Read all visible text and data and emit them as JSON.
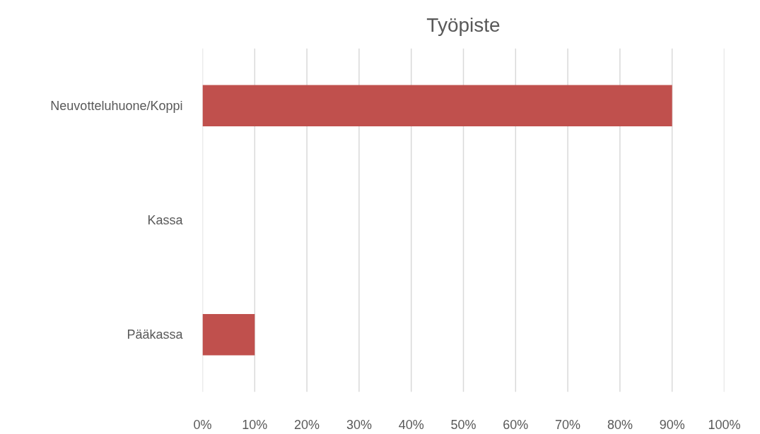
{
  "chart_data": {
    "type": "bar",
    "orientation": "horizontal",
    "title": "Työpiste",
    "categories": [
      "Neuvotteluhuone/Koppi",
      "Kassa",
      "Pääkassa"
    ],
    "values": [
      90,
      0,
      10
    ],
    "color": "#c0504d",
    "xlim": [
      0,
      100
    ],
    "xticks": [
      {
        "value": 0,
        "label": "0%"
      },
      {
        "value": 10,
        "label": "10%"
      },
      {
        "value": 20,
        "label": "20%"
      },
      {
        "value": 30,
        "label": "30%"
      },
      {
        "value": 40,
        "label": "40%"
      },
      {
        "value": 50,
        "label": "50%"
      },
      {
        "value": 60,
        "label": "60%"
      },
      {
        "value": 70,
        "label": "70%"
      },
      {
        "value": 80,
        "label": "80%"
      },
      {
        "value": 90,
        "label": "90%"
      },
      {
        "value": 100,
        "label": "100%"
      }
    ],
    "grid": "x"
  }
}
